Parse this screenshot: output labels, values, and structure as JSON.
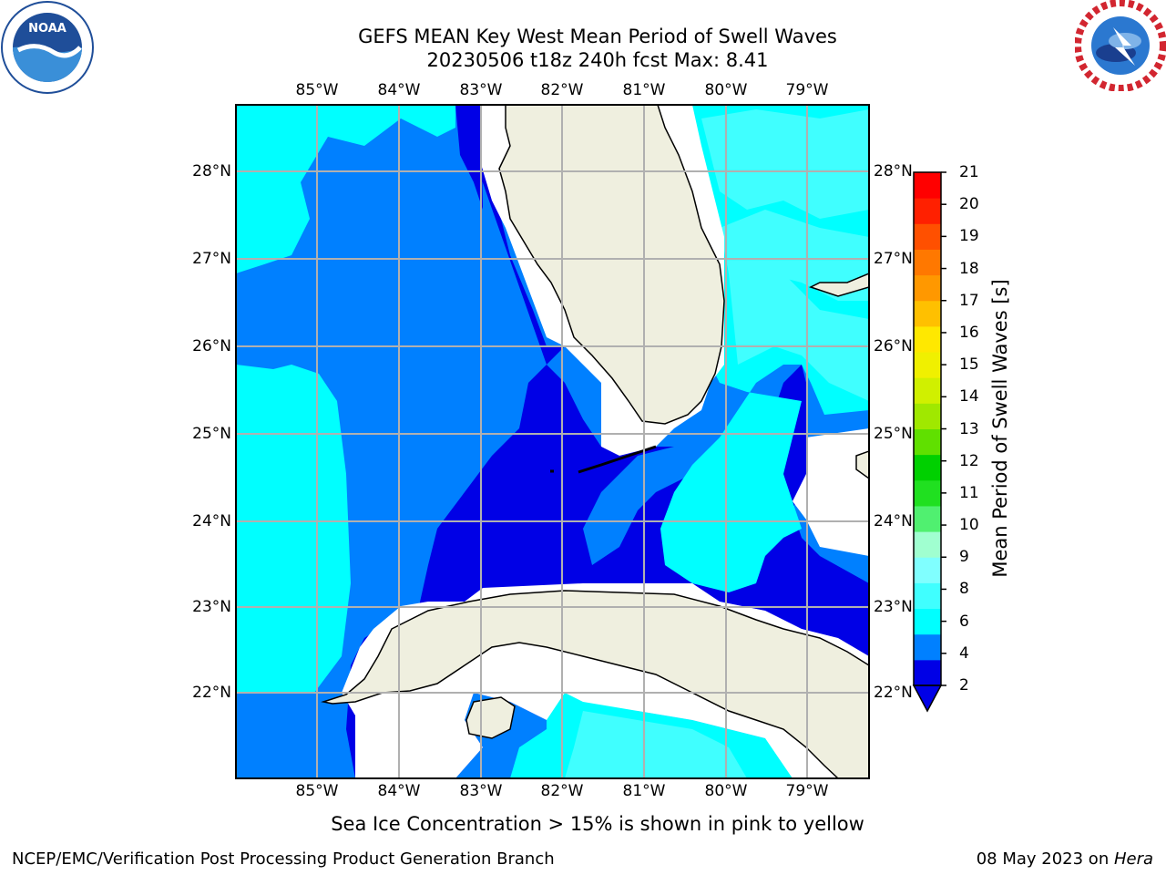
{
  "title_line1": "GEFS MEAN Key West Mean Period of Swell Waves",
  "title_line2": "20230506 t18z 240h fcst   Max: 8.41",
  "lon_labels": [
    "85°W",
    "84°W",
    "83°W",
    "82°W",
    "81°W",
    "80°W",
    "79°W"
  ],
  "lat_labels": [
    "28°N",
    "27°N",
    "26°N",
    "25°N",
    "24°N",
    "23°N",
    "22°N"
  ],
  "colorbar": {
    "label": "Mean Period of Swell Waves [s]",
    "ticks": [
      "21",
      "20",
      "19",
      "18",
      "17",
      "16",
      "15",
      "14",
      "13",
      "12",
      "11",
      "10",
      "9",
      "8",
      "6",
      "4",
      "2"
    ],
    "colors": [
      "#0000e6",
      "#0080ff",
      "#00ffff",
      "#40ffff",
      "#80ffff",
      "#a0ffd0",
      "#50f070",
      "#20e020",
      "#00d000",
      "#60e000",
      "#a0e800",
      "#d0f000",
      "#f0f000",
      "#ffe800",
      "#ffc000",
      "#ff9800",
      "#ff7800",
      "#ff5000",
      "#ff2000",
      "#ff0000"
    ]
  },
  "note": "Sea Ice Concentration > 15% is shown in pink to yellow",
  "footer_left": "NCEP/EMC/Verification Post Processing Product Generation Branch",
  "footer_date": "08 May 2023 on ",
  "footer_host": "Hera",
  "logos": {
    "left": "noaa-logo",
    "right": "nws-logo"
  }
}
